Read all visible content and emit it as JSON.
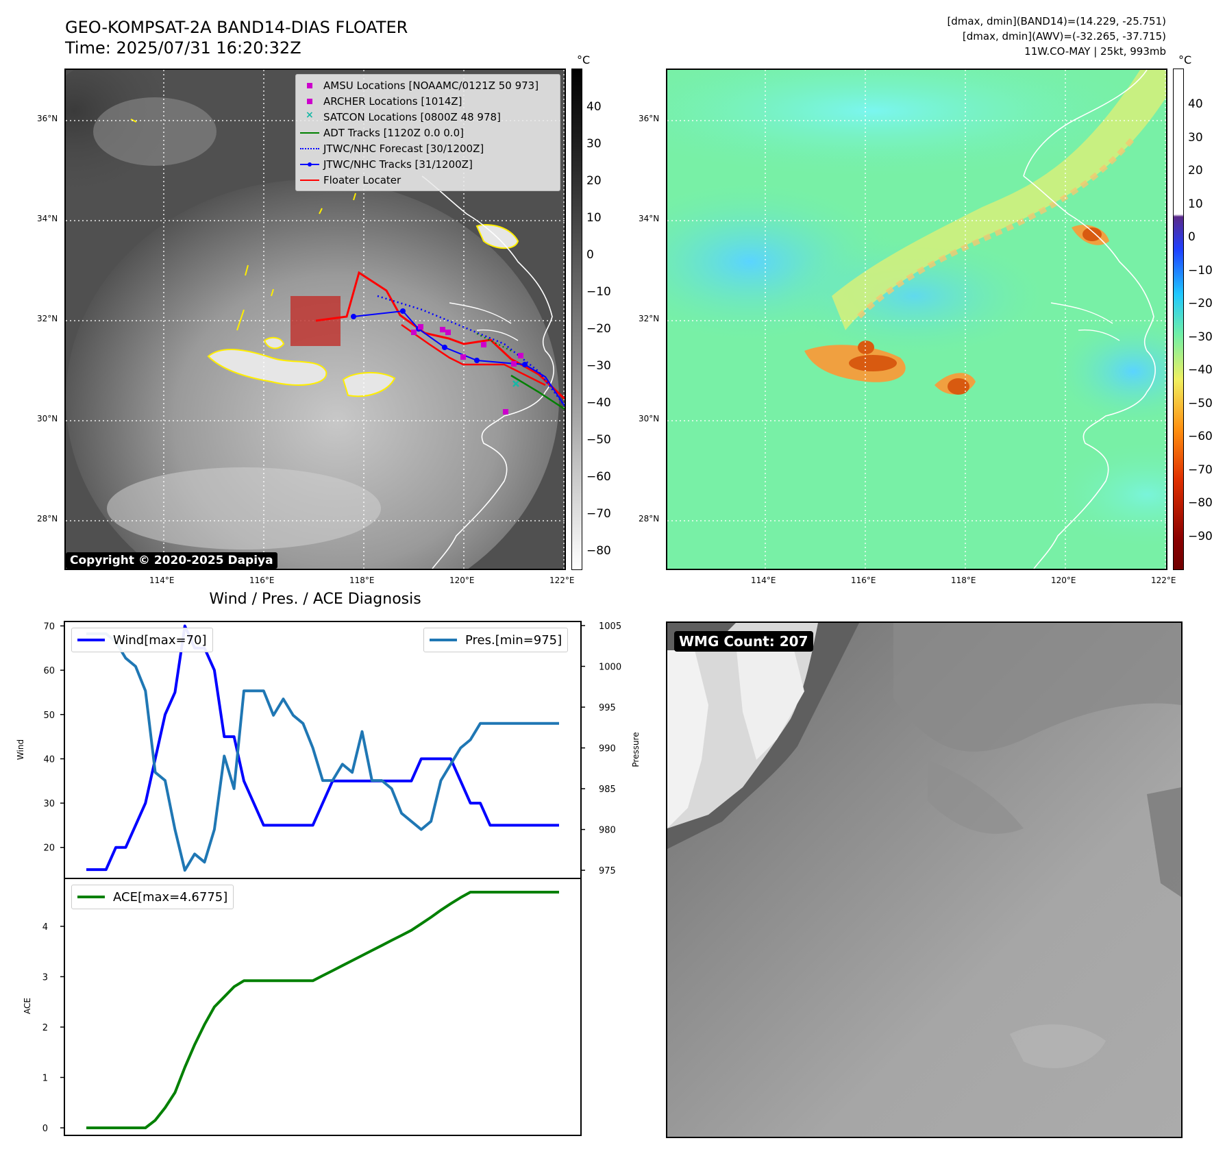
{
  "header": {
    "title_line1": "GEO-KOMPSAT-2A BAND14-DIAS FLOATER",
    "title_line2": "Time: 2025/07/31 16:20:32Z",
    "info_line1": "[dmax, dmin](BAND14)=(14.229, -25.751)",
    "info_line2": "[dmax, dmin](AWV)=(-32.265, -37.715)",
    "info_line3": "11W.CO-MAY | 25kt, 993mb"
  },
  "map": {
    "lat_labels": [
      "36°N",
      "34°N",
      "32°N",
      "30°N",
      "28°N"
    ],
    "lon_labels": [
      "114°E",
      "116°E",
      "118°E",
      "120°E",
      "122°E"
    ],
    "colorbar_unit": "°C",
    "ir_colorbar_ticks": [
      "40",
      "30",
      "20",
      "10",
      "0",
      "−10",
      "−20",
      "−30",
      "−40",
      "−50",
      "−60",
      "−70",
      "−80"
    ],
    "awv_colorbar_ticks": [
      "40",
      "30",
      "20",
      "10",
      "0",
      "−10",
      "−20",
      "−30",
      "−40",
      "−50",
      "−60",
      "−70",
      "−80",
      "−90"
    ],
    "copyright": "Copyright © 2020-2025 Dapiya",
    "legend": [
      {
        "label": "AMSU Locations [NOAAMC/0121Z 50 973]",
        "symbol": "square",
        "color": "#cc00cc"
      },
      {
        "label": "ARCHER Locations [1014Z]",
        "symbol": "square",
        "color": "#cc00cc"
      },
      {
        "label": "SATCON Locations [0800Z 48 978]",
        "symbol": "x",
        "color": "#17b8a6"
      },
      {
        "label": "ADT Tracks [1120Z 0.0 0.0]",
        "symbol": "line",
        "color": "#008000"
      },
      {
        "label": "JTWC/NHC Forecast [30/1200Z]",
        "symbol": "dotted",
        "color": "#0000ff"
      },
      {
        "label": "JTWC/NHC Tracks [31/1200Z]",
        "symbol": "line-dot",
        "color": "#0000ff"
      },
      {
        "label": "Floater Locater",
        "symbol": "line",
        "color": "#ff0000"
      }
    ],
    "colors": {
      "track_blue": "#0000ff",
      "floater_red": "#ff0000",
      "adt_green": "#008000",
      "contour_yellow": "#ffee00"
    }
  },
  "diagnosis": {
    "title": "Wind / Pres. / ACE Diagnosis",
    "wind_legend": "Wind[max=70]",
    "pres_legend": "Pres.[min=975]",
    "ace_legend": "ACE[max=4.6775]",
    "wind_axis_label": "Wind",
    "pres_axis_label": "Pressure",
    "ace_axis_label": "ACE"
  },
  "wmg": {
    "badge": "WMG Count: 207"
  },
  "chart_data": [
    {
      "type": "line",
      "title": "Wind / Pres. / ACE Diagnosis",
      "x_index": [
        0,
        1,
        2,
        3,
        4,
        5,
        6,
        7,
        8,
        9,
        10,
        11,
        12,
        13,
        14,
        15,
        16,
        17,
        18,
        19,
        20,
        21,
        22,
        23,
        24,
        25,
        26,
        27,
        28,
        29,
        30,
        31,
        32,
        33,
        34,
        35,
        36,
        37,
        38,
        39,
        40,
        41,
        42,
        43,
        44,
        45,
        46,
        47,
        48
      ],
      "series": [
        {
          "name": "Wind[max=70]",
          "axis": "left",
          "color": "#0000ff",
          "values": [
            15,
            15,
            15,
            20,
            20,
            25,
            30,
            40,
            50,
            55,
            70,
            65,
            65,
            60,
            45,
            45,
            35,
            30,
            25,
            25,
            25,
            25,
            25,
            25,
            30,
            35,
            35,
            35,
            35,
            35,
            35,
            35,
            35,
            35,
            40,
            40,
            40,
            40,
            35,
            30,
            30,
            25,
            25,
            25,
            25,
            25,
            25,
            25,
            25
          ]
        },
        {
          "name": "Pres.[min=975]",
          "axis": "right",
          "color": "#1f77b4",
          "values": [
            1004,
            1004,
            1004,
            1003,
            1001,
            1000,
            997,
            987,
            986,
            980,
            975,
            977,
            976,
            980,
            989,
            985,
            997,
            997,
            997,
            994,
            996,
            994,
            993,
            990,
            986,
            986,
            988,
            987,
            992,
            986,
            986,
            985,
            982,
            981,
            980,
            981,
            986,
            988,
            990,
            991,
            993,
            993,
            993,
            993,
            993,
            993,
            993,
            993,
            993
          ]
        },
        {
          "name": "ACE[max=4.6775]",
          "axis": "ace",
          "color": "#008000",
          "values": [
            0,
            0,
            0,
            0,
            0,
            0,
            0,
            0.15,
            0.4,
            0.7,
            1.2,
            1.65,
            2.05,
            2.4,
            2.6,
            2.8,
            2.92,
            2.92,
            2.92,
            2.92,
            2.92,
            2.92,
            2.92,
            2.92,
            3.02,
            3.12,
            3.22,
            3.32,
            3.42,
            3.52,
            3.62,
            3.72,
            3.82,
            3.92,
            4.05,
            4.18,
            4.32,
            4.45,
            4.57,
            4.6775,
            4.6775,
            4.6775,
            4.6775,
            4.6775,
            4.6775,
            4.6775,
            4.6775,
            4.6775,
            4.6775
          ]
        }
      ],
      "wind_ylim": [
        13,
        71
      ],
      "wind_yticks": [
        20,
        30,
        40,
        50,
        60,
        70
      ],
      "pres_ylim": [
        974,
        1005.5
      ],
      "pres_yticks": [
        975,
        980,
        985,
        990,
        995,
        1000,
        1005
      ],
      "ace_ylim": [
        -0.15,
        4.95
      ],
      "ace_yticks": [
        0,
        1,
        2,
        3,
        4
      ],
      "legend_positions": {
        "wind": "top-left",
        "pres": "top-right",
        "ace": "top-left"
      }
    }
  ]
}
